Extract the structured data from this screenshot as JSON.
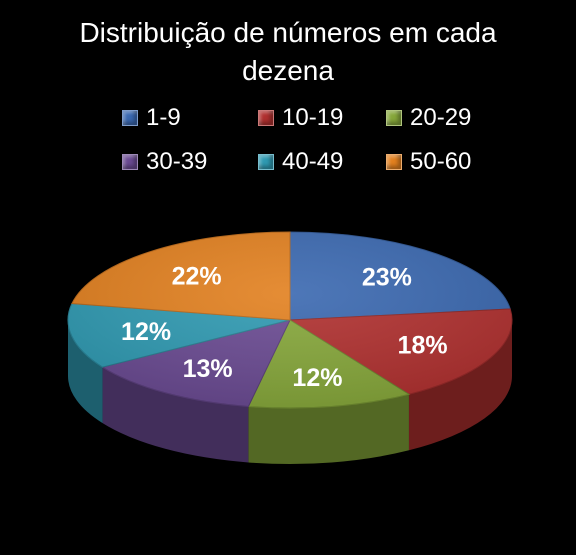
{
  "chart_data": {
    "type": "pie",
    "title": "Distribuição de números em cada dezena",
    "title_lines": [
      "Distribuição de números em cada",
      "dezena"
    ],
    "categories": [
      "1-9",
      "10-19",
      "20-29",
      "30-39",
      "40-49",
      "50-60"
    ],
    "values": [
      23,
      18,
      12,
      13,
      12,
      22
    ],
    "labels": [
      "23%",
      "18%",
      "12%",
      "13%",
      "12%",
      "22%"
    ],
    "colors": [
      "#3A68B0",
      "#B0302F",
      "#86A73A",
      "#6A4A92",
      "#2F9AB2",
      "#E2801F"
    ],
    "legend_position": "top",
    "style": "3d"
  }
}
